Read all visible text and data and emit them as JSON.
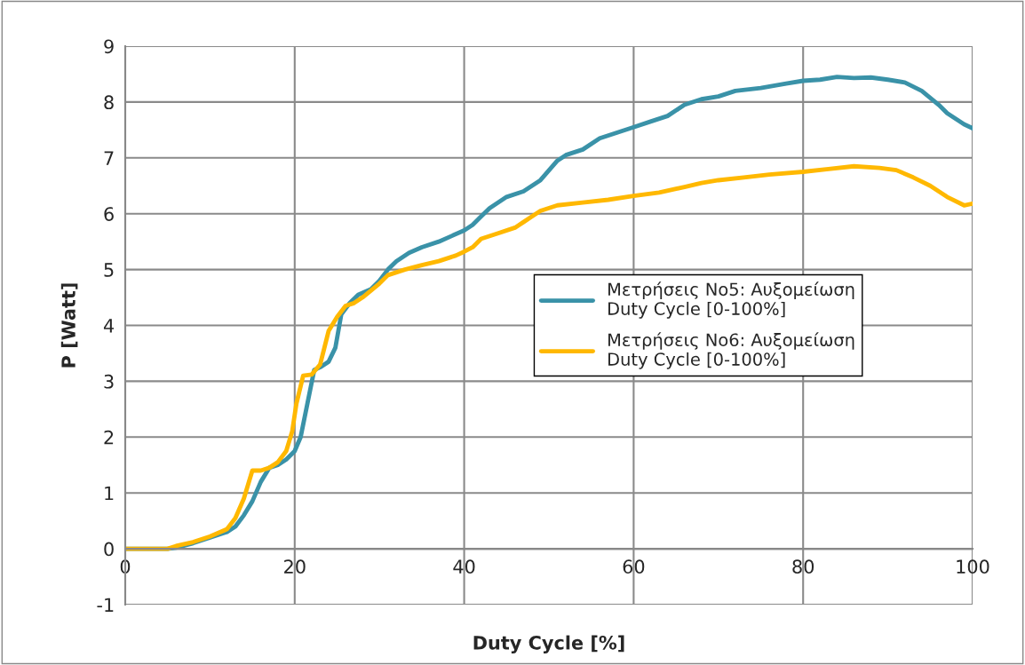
{
  "chart_data": {
    "type": "line",
    "xlabel": "Duty Cycle [%]",
    "ylabel": "P [Watt]",
    "xlim": [
      0,
      100
    ],
    "xticks": [
      0,
      20,
      40,
      60,
      80,
      100
    ],
    "ylim": [
      -1,
      9
    ],
    "yticks": [
      -1,
      0,
      1,
      2,
      3,
      4,
      5,
      6,
      7,
      8,
      9
    ],
    "grid": true,
    "legend": "center right",
    "marker": "none",
    "line_style": "solid",
    "series": [
      {
        "name": "Μετρήσεις No5: Αυξομείωση\nDuty Cycle [0-100%]",
        "color": "#3a92a8",
        "x": [
          0,
          5,
          6,
          8,
          10,
          12,
          13,
          14,
          15,
          16,
          17,
          18,
          19,
          20,
          20.7,
          21.5,
          22.3,
          23,
          24,
          24.8,
          25.5,
          26.5,
          27.5,
          29,
          30,
          31,
          32,
          33.5,
          35,
          37,
          38.5,
          40,
          41,
          42,
          43,
          45,
          47,
          49,
          51,
          52,
          54,
          56,
          58,
          60,
          62,
          64,
          66,
          68,
          70,
          72,
          75,
          78,
          80,
          82,
          84,
          86,
          88,
          90,
          92,
          94,
          96,
          97,
          98,
          99,
          100
        ],
        "values": [
          0,
          0,
          0.02,
          0.1,
          0.2,
          0.3,
          0.4,
          0.6,
          0.85,
          1.2,
          1.45,
          1.5,
          1.6,
          1.75,
          2.0,
          2.6,
          3.2,
          3.25,
          3.35,
          3.6,
          4.2,
          4.4,
          4.55,
          4.65,
          4.8,
          5.0,
          5.15,
          5.3,
          5.4,
          5.5,
          5.6,
          5.7,
          5.8,
          5.95,
          6.1,
          6.3,
          6.4,
          6.6,
          6.95,
          7.05,
          7.15,
          7.35,
          7.45,
          7.55,
          7.65,
          7.75,
          7.95,
          8.05,
          8.1,
          8.2,
          8.25,
          8.33,
          8.38,
          8.4,
          8.45,
          8.43,
          8.44,
          8.4,
          8.35,
          8.2,
          7.95,
          7.8,
          7.7,
          7.6,
          7.53
        ]
      },
      {
        "name": "Μετρήσεις No6: Αυξομείωση\nDuty Cycle [0-100%]",
        "color": "#ffb800",
        "x": [
          0,
          5,
          6,
          8,
          10,
          12,
          13,
          14,
          15,
          16,
          17,
          18,
          19,
          19.7,
          20.2,
          21,
          22,
          23,
          24,
          25,
          26,
          27,
          28,
          30,
          31,
          33,
          35,
          37,
          39,
          40,
          41,
          42,
          44,
          46,
          47,
          48,
          49,
          51,
          54,
          57,
          60,
          63,
          66,
          68,
          70,
          73,
          76,
          80,
          83,
          86,
          89,
          91,
          93,
          95,
          97,
          99,
          100
        ],
        "values": [
          0,
          0,
          0.05,
          0.12,
          0.22,
          0.35,
          0.55,
          0.9,
          1.4,
          1.4,
          1.45,
          1.55,
          1.75,
          2.1,
          2.6,
          3.1,
          3.12,
          3.3,
          3.9,
          4.15,
          4.35,
          4.4,
          4.5,
          4.75,
          4.9,
          5.0,
          5.08,
          5.15,
          5.25,
          5.32,
          5.4,
          5.55,
          5.65,
          5.75,
          5.85,
          5.95,
          6.05,
          6.15,
          6.2,
          6.25,
          6.32,
          6.38,
          6.48,
          6.55,
          6.6,
          6.65,
          6.7,
          6.75,
          6.8,
          6.85,
          6.82,
          6.78,
          6.65,
          6.5,
          6.3,
          6.15,
          6.18
        ]
      }
    ]
  }
}
